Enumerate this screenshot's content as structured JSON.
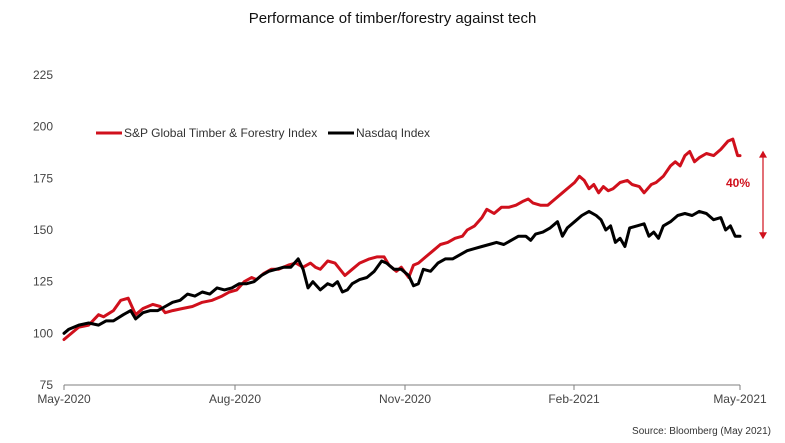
{
  "chart_data": {
    "type": "line",
    "title": "Performance of timber/forestry  against tech",
    "xlabel": "",
    "ylabel": "",
    "ylim": [
      75,
      225
    ],
    "yticks": [
      75,
      100,
      125,
      150,
      175,
      200,
      225
    ],
    "xticks": [
      "May-2020",
      "Aug-2020",
      "Nov-2020",
      "Feb-2021",
      "May-2021"
    ],
    "x_range_months": [
      0,
      12
    ],
    "grid": false,
    "legend_position": "top-left",
    "series": [
      {
        "name": "S&P Global Timber & Forestry Index",
        "color": "#d0101c",
        "points": [
          [
            0,
            97
          ],
          [
            0.1,
            99
          ],
          [
            0.3,
            103
          ],
          [
            0.5,
            104
          ],
          [
            0.7,
            109
          ],
          [
            0.8,
            108
          ],
          [
            1.0,
            111
          ],
          [
            1.15,
            116
          ],
          [
            1.3,
            117
          ],
          [
            1.45,
            109
          ],
          [
            1.6,
            112
          ],
          [
            1.8,
            114
          ],
          [
            1.95,
            113
          ],
          [
            2.05,
            110
          ],
          [
            2.2,
            111
          ],
          [
            2.4,
            112
          ],
          [
            2.6,
            113
          ],
          [
            2.8,
            115
          ],
          [
            3.0,
            116
          ],
          [
            3.2,
            118
          ],
          [
            3.35,
            120
          ],
          [
            3.5,
            121
          ],
          [
            3.65,
            125
          ],
          [
            3.8,
            127
          ],
          [
            3.9,
            126
          ],
          [
            4.05,
            129
          ],
          [
            4.2,
            131
          ],
          [
            4.35,
            131
          ],
          [
            4.55,
            133
          ],
          [
            4.7,
            134
          ],
          [
            4.85,
            132
          ],
          [
            5.0,
            134
          ],
          [
            5.1,
            132
          ],
          [
            5.2,
            131
          ],
          [
            5.35,
            135
          ],
          [
            5.5,
            134
          ],
          [
            5.7,
            128
          ],
          [
            5.85,
            131
          ],
          [
            6.0,
            134
          ],
          [
            6.2,
            136
          ],
          [
            6.35,
            137
          ],
          [
            6.5,
            137
          ],
          [
            6.6,
            133
          ],
          [
            6.75,
            130
          ],
          [
            6.85,
            132
          ],
          [
            7.0,
            127
          ],
          [
            7.1,
            133
          ],
          [
            7.2,
            134
          ],
          [
            7.35,
            137
          ],
          [
            7.5,
            140
          ],
          [
            7.65,
            143
          ],
          [
            7.8,
            144
          ],
          [
            7.95,
            146
          ],
          [
            8.1,
            147
          ],
          [
            8.2,
            150
          ],
          [
            8.35,
            152
          ],
          [
            8.5,
            156
          ],
          [
            8.6,
            160
          ],
          [
            8.75,
            158
          ],
          [
            8.9,
            161
          ],
          [
            9.05,
            161
          ],
          [
            9.2,
            162
          ],
          [
            9.35,
            164
          ],
          [
            9.45,
            165
          ],
          [
            9.55,
            163
          ],
          [
            9.7,
            162
          ],
          [
            9.85,
            162
          ],
          [
            10.0,
            165
          ],
          [
            10.15,
            168
          ],
          [
            10.3,
            171
          ],
          [
            10.4,
            173
          ],
          [
            10.5,
            176
          ],
          [
            10.6,
            174
          ],
          [
            10.7,
            170
          ],
          [
            10.8,
            172
          ],
          [
            10.9,
            168
          ],
          [
            11.0,
            171
          ],
          [
            11.1,
            169
          ],
          [
            11.2,
            170
          ],
          [
            11.35,
            173
          ],
          [
            11.5,
            174
          ],
          [
            11.6,
            172
          ],
          [
            11.75,
            171
          ],
          [
            11.85,
            168
          ],
          [
            12.0,
            172
          ],
          [
            12.1,
            173
          ],
          [
            12.25,
            176
          ],
          [
            12.4,
            181
          ],
          [
            12.5,
            183
          ],
          [
            12.6,
            181
          ],
          [
            12.7,
            186
          ],
          [
            12.8,
            188
          ],
          [
            12.9,
            183
          ],
          [
            13.0,
            185
          ],
          [
            13.15,
            187
          ],
          [
            13.3,
            186
          ],
          [
            13.45,
            189
          ],
          [
            13.6,
            193
          ],
          [
            13.7,
            194
          ],
          [
            13.8,
            186
          ],
          [
            13.85,
            186
          ]
        ]
      },
      {
        "name": "Nasdaq Index",
        "color": "#000000",
        "points": [
          [
            0,
            100
          ],
          [
            0.1,
            102
          ],
          [
            0.3,
            104
          ],
          [
            0.5,
            105
          ],
          [
            0.7,
            104
          ],
          [
            0.85,
            106
          ],
          [
            1.0,
            106
          ],
          [
            1.2,
            109
          ],
          [
            1.35,
            111
          ],
          [
            1.45,
            107
          ],
          [
            1.6,
            110
          ],
          [
            1.75,
            111
          ],
          [
            1.9,
            111
          ],
          [
            2.05,
            113
          ],
          [
            2.2,
            115
          ],
          [
            2.35,
            116
          ],
          [
            2.5,
            119
          ],
          [
            2.65,
            118
          ],
          [
            2.8,
            120
          ],
          [
            2.95,
            119
          ],
          [
            3.1,
            122
          ],
          [
            3.25,
            121
          ],
          [
            3.4,
            122
          ],
          [
            3.55,
            124
          ],
          [
            3.7,
            124
          ],
          [
            3.85,
            125
          ],
          [
            4.0,
            128
          ],
          [
            4.15,
            130
          ],
          [
            4.3,
            131
          ],
          [
            4.45,
            132
          ],
          [
            4.6,
            132
          ],
          [
            4.75,
            136
          ],
          [
            4.85,
            131
          ],
          [
            4.95,
            122
          ],
          [
            5.05,
            125
          ],
          [
            5.2,
            121
          ],
          [
            5.35,
            124
          ],
          [
            5.45,
            123
          ],
          [
            5.55,
            125
          ],
          [
            5.65,
            120
          ],
          [
            5.75,
            121
          ],
          [
            5.85,
            124
          ],
          [
            6.0,
            126
          ],
          [
            6.15,
            127
          ],
          [
            6.3,
            130
          ],
          [
            6.45,
            135
          ],
          [
            6.55,
            134
          ],
          [
            6.7,
            131
          ],
          [
            6.85,
            131
          ],
          [
            7.0,
            128
          ],
          [
            7.1,
            123
          ],
          [
            7.2,
            124
          ],
          [
            7.3,
            131
          ],
          [
            7.45,
            130
          ],
          [
            7.6,
            134
          ],
          [
            7.75,
            136
          ],
          [
            7.9,
            136
          ],
          [
            8.05,
            138
          ],
          [
            8.2,
            140
          ],
          [
            8.35,
            141
          ],
          [
            8.5,
            142
          ],
          [
            8.65,
            143
          ],
          [
            8.8,
            144
          ],
          [
            8.95,
            143
          ],
          [
            9.1,
            145
          ],
          [
            9.25,
            147
          ],
          [
            9.4,
            147
          ],
          [
            9.5,
            145
          ],
          [
            9.6,
            148
          ],
          [
            9.75,
            149
          ],
          [
            9.9,
            151
          ],
          [
            10.05,
            154
          ],
          [
            10.15,
            147
          ],
          [
            10.25,
            151
          ],
          [
            10.4,
            154
          ],
          [
            10.55,
            157
          ],
          [
            10.7,
            159
          ],
          [
            10.85,
            157
          ],
          [
            10.95,
            155
          ],
          [
            11.05,
            150
          ],
          [
            11.15,
            152
          ],
          [
            11.25,
            144
          ],
          [
            11.35,
            146
          ],
          [
            11.45,
            142
          ],
          [
            11.55,
            151
          ],
          [
            11.7,
            152
          ],
          [
            11.85,
            153
          ],
          [
            11.95,
            147
          ],
          [
            12.05,
            149
          ],
          [
            12.15,
            146
          ],
          [
            12.25,
            152
          ],
          [
            12.4,
            154
          ],
          [
            12.55,
            157
          ],
          [
            12.7,
            158
          ],
          [
            12.85,
            157
          ],
          [
            13.0,
            159
          ],
          [
            13.15,
            158
          ],
          [
            13.3,
            155
          ],
          [
            13.45,
            156
          ],
          [
            13.55,
            150
          ],
          [
            13.65,
            152
          ],
          [
            13.75,
            147
          ],
          [
            13.85,
            147
          ]
        ]
      }
    ],
    "annotation": {
      "label": "40%",
      "from": 186,
      "to": 147,
      "color": "#d0101c"
    }
  },
  "source": "Source: Bloomberg (May 2021)"
}
